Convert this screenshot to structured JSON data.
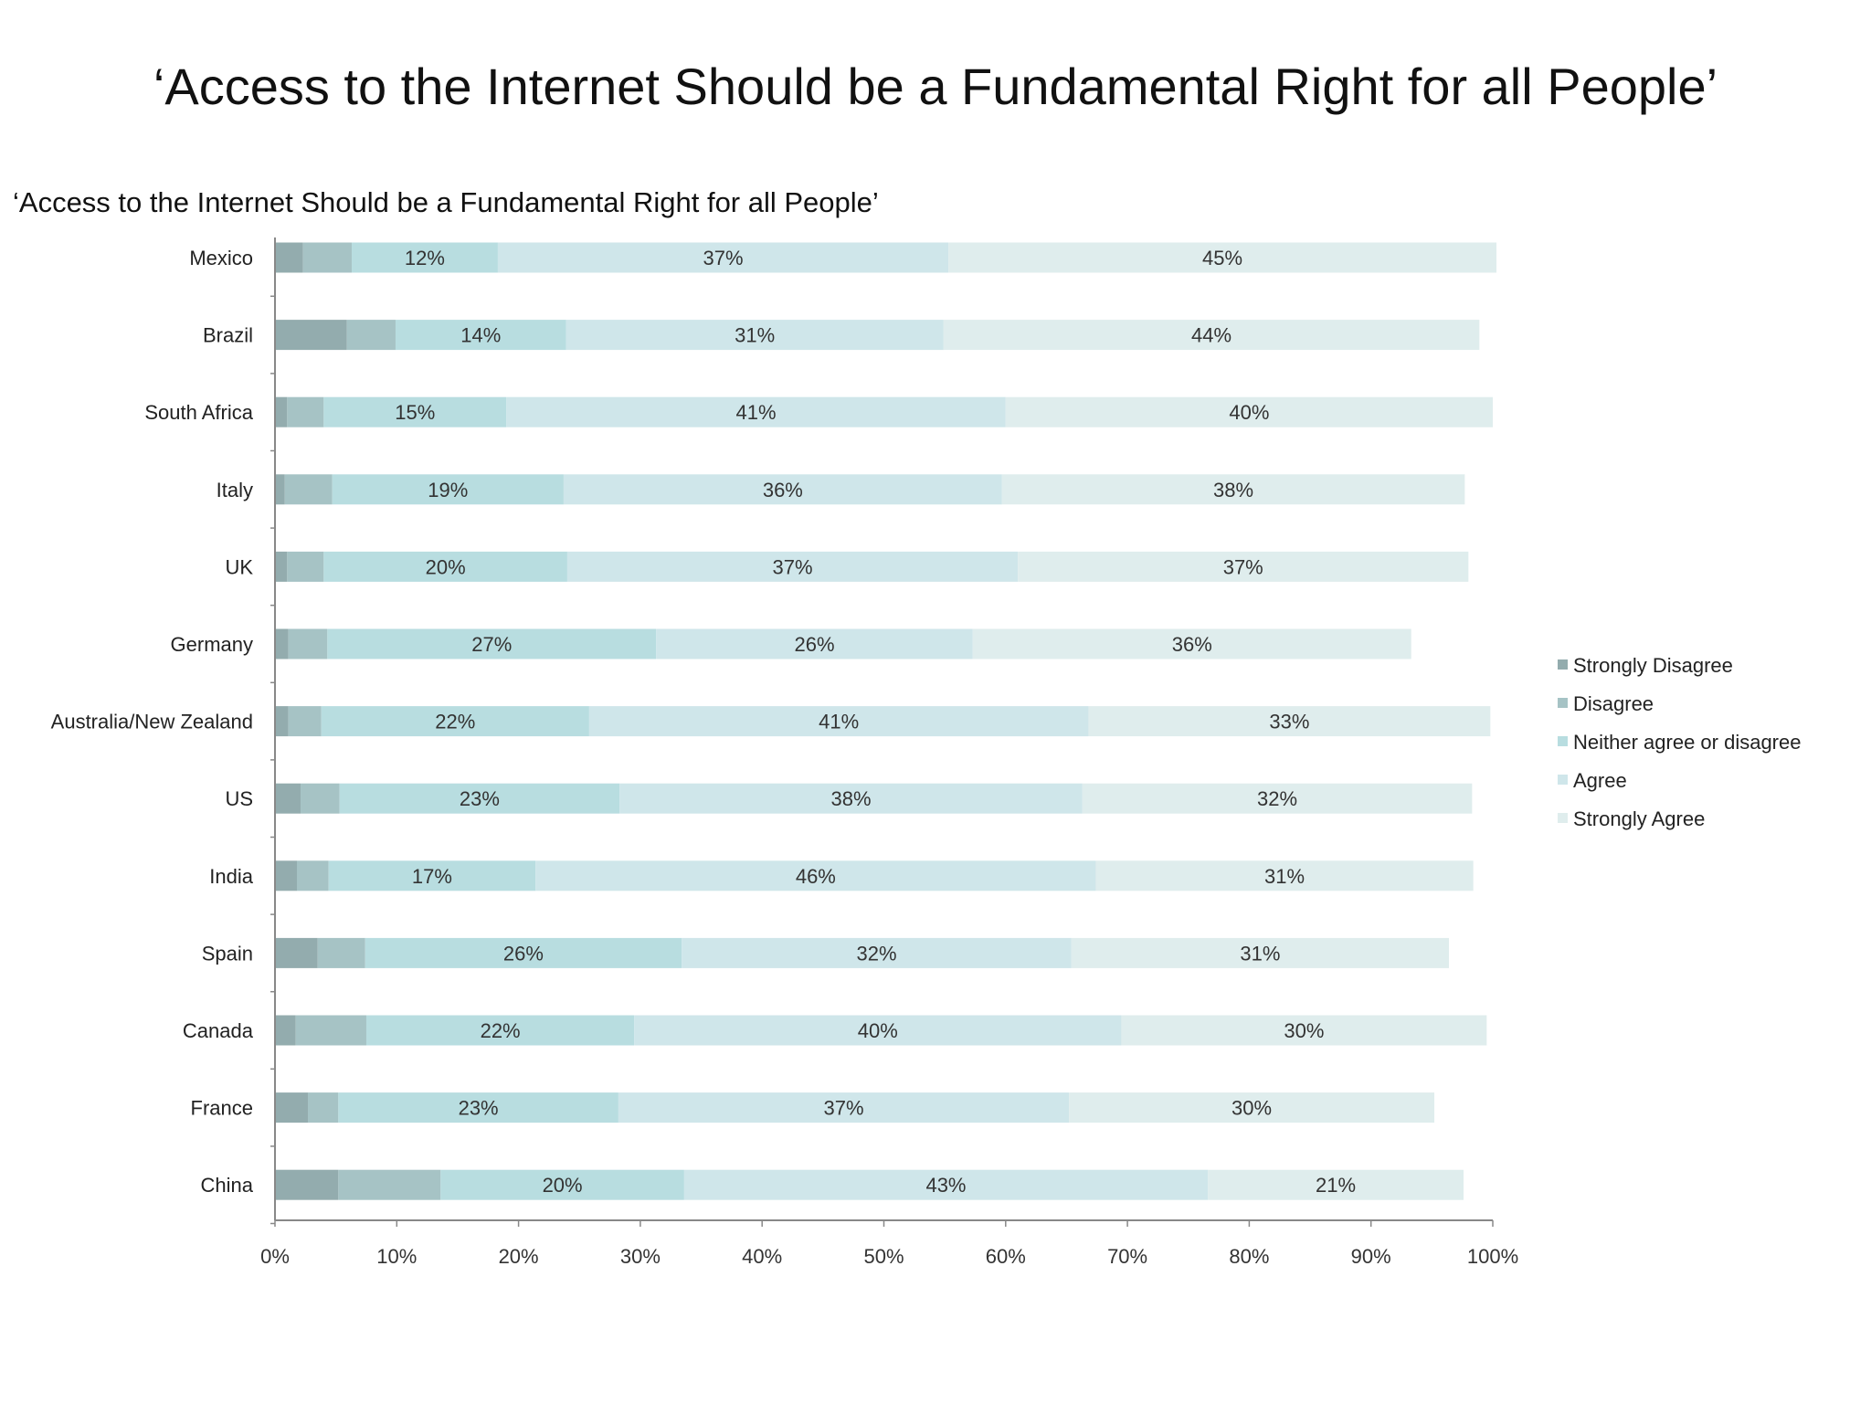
{
  "slide": {
    "title": "‘Access to the Internet Should be a Fundamental Right for all People’"
  },
  "chart_data": {
    "type": "bar",
    "orientation": "horizontal",
    "stacked": true,
    "title": "‘Access to the Internet Should be a Fundamental Right for all People’",
    "xlabel": "",
    "ylabel": "",
    "xlim": [
      0,
      100
    ],
    "x_ticks": [
      "0%",
      "10%",
      "20%",
      "30%",
      "40%",
      "50%",
      "60%",
      "70%",
      "80%",
      "90%",
      "100%"
    ],
    "grid": false,
    "legend_position": "right",
    "categories": [
      "Mexico",
      "Brazil",
      "South Africa",
      "Italy",
      "UK",
      "Germany",
      "Australia/New Zealand",
      "US",
      "India",
      "Spain",
      "Canada",
      "France",
      "China"
    ],
    "series": [
      {
        "name": "Strongly Disagree",
        "color": "#93acae",
        "values": [
          2.3,
          5.9,
          1.0,
          0.8,
          1.0,
          1.1,
          1.1,
          2.1,
          1.8,
          3.5,
          1.7,
          2.7,
          5.2
        ]
      },
      {
        "name": "Disagree",
        "color": "#a6c3c5",
        "values": [
          4.0,
          4.0,
          3.0,
          3.9,
          3.0,
          3.2,
          2.7,
          3.2,
          2.6,
          3.9,
          5.8,
          2.5,
          8.4
        ]
      },
      {
        "name": "Neither agree or disagree",
        "color": "#b8dde0",
        "values": [
          12,
          14,
          15,
          19,
          20,
          27,
          22,
          23,
          17,
          26,
          22,
          23,
          20
        ]
      },
      {
        "name": "Agree",
        "color": "#cfe6ea",
        "values": [
          37,
          31,
          41,
          36,
          37,
          26,
          41,
          38,
          46,
          32,
          40,
          37,
          43
        ]
      },
      {
        "name": "Strongly Agree",
        "color": "#dfeded",
        "values": [
          45,
          44,
          40,
          38,
          37,
          36,
          33,
          32,
          31,
          31,
          30,
          30,
          21
        ]
      }
    ],
    "data_labels": {
      "Neither agree or disagree": [
        "12%",
        "14%",
        "15%",
        "19%",
        "20%",
        "27%",
        "22%",
        "23%",
        "17%",
        "26%",
        "22%",
        "23%",
        "20%"
      ],
      "Agree": [
        "37%",
        "31%",
        "41%",
        "36%",
        "37%",
        "26%",
        "41%",
        "38%",
        "46%",
        "32%",
        "40%",
        "37%",
        "43%"
      ],
      "Strongly Agree": [
        "45%",
        "44%",
        "40%",
        "38%",
        "37%",
        "36%",
        "33%",
        "32%",
        "31%",
        "31%",
        "30%",
        "30%",
        "21%"
      ]
    }
  }
}
